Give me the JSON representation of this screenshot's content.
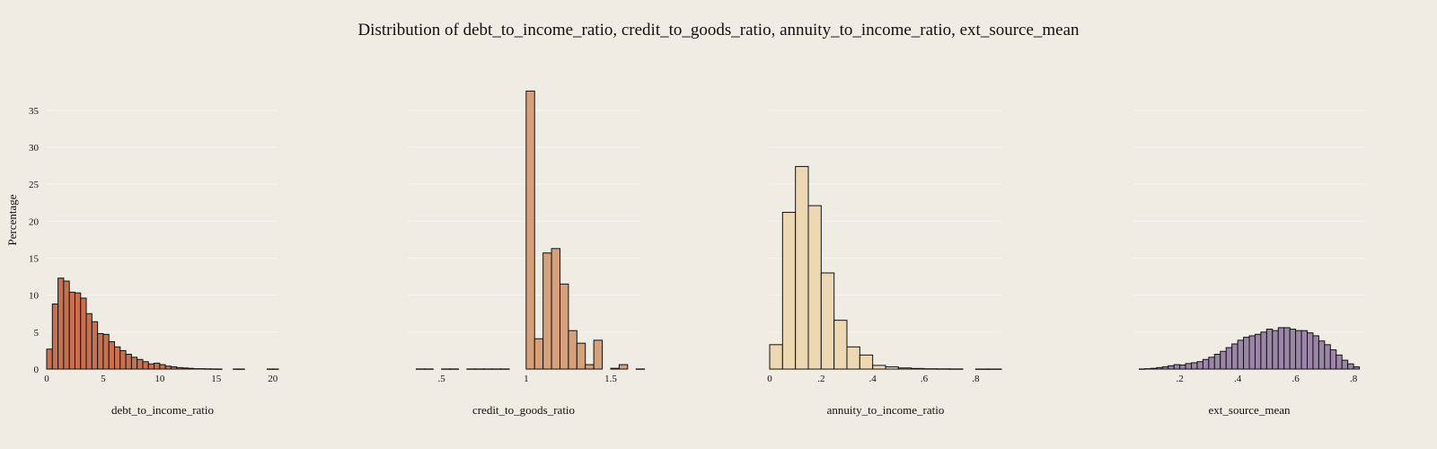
{
  "chart_data": {
    "type": "bar",
    "title": "Distribution of debt_to_income_ratio, credit_to_goods_ratio, annuity_to_income_ratio, ext_source_mean",
    "ylabel": "Percentage",
    "ylim": [
      0,
      38.5
    ],
    "yticks": [
      0,
      5,
      10,
      15,
      20,
      25,
      30,
      35
    ],
    "grid": true,
    "panels": [
      {
        "name": "debt_to_income_ratio",
        "xlabel": "debt_to_income_ratio",
        "color": "#c9704e",
        "xlim": [
          0,
          20.5
        ],
        "xticks": [
          0,
          5,
          10,
          15,
          20
        ],
        "bin_width": 0.5,
        "bins": [
          [
            0.0,
            2.7
          ],
          [
            0.5,
            8.8
          ],
          [
            1.0,
            12.3
          ],
          [
            1.5,
            11.9
          ],
          [
            2.0,
            10.4
          ],
          [
            2.5,
            10.3
          ],
          [
            3.0,
            9.6
          ],
          [
            3.5,
            7.5
          ],
          [
            4.0,
            6.4
          ],
          [
            4.5,
            4.8
          ],
          [
            5.0,
            4.7
          ],
          [
            5.5,
            3.7
          ],
          [
            6.0,
            3.0
          ],
          [
            6.5,
            2.5
          ],
          [
            7.0,
            2.0
          ],
          [
            7.5,
            1.6
          ],
          [
            8.0,
            1.3
          ],
          [
            8.5,
            1.0
          ],
          [
            9.0,
            0.7
          ],
          [
            9.5,
            0.8
          ],
          [
            10.0,
            0.6
          ],
          [
            10.5,
            0.4
          ],
          [
            11.0,
            0.3
          ],
          [
            11.5,
            0.2
          ],
          [
            12.0,
            0.15
          ],
          [
            12.5,
            0.1
          ],
          [
            13.0,
            0.05
          ],
          [
            13.5,
            0.05
          ],
          [
            14.0,
            0.03
          ],
          [
            14.5,
            0.02
          ],
          [
            15.0,
            0.01
          ],
          [
            16.5,
            0.01
          ],
          [
            17.0,
            0.01
          ],
          [
            19.5,
            0.01
          ],
          [
            20.0,
            0.01
          ]
        ]
      },
      {
        "name": "credit_to_goods_ratio",
        "xlabel": "credit_to_goods_ratio",
        "color": "#d6a07a",
        "xlim": [
          0.3,
          1.67
        ],
        "xticks": [
          0.5,
          1,
          1.5
        ],
        "bin_width": 0.05,
        "bins": [
          [
            0.35,
            0.02
          ],
          [
            0.4,
            0.02
          ],
          [
            0.5,
            0.02
          ],
          [
            0.55,
            0.02
          ],
          [
            0.65,
            0.02
          ],
          [
            0.7,
            0.02
          ],
          [
            0.75,
            0.02
          ],
          [
            0.8,
            0.02
          ],
          [
            0.85,
            0.02
          ],
          [
            1.0,
            37.6
          ],
          [
            1.05,
            4.1
          ],
          [
            1.1,
            15.7
          ],
          [
            1.15,
            16.3
          ],
          [
            1.2,
            11.5
          ],
          [
            1.25,
            5.2
          ],
          [
            1.3,
            3.5
          ],
          [
            1.35,
            0.6
          ],
          [
            1.4,
            3.9
          ],
          [
            1.5,
            0.1
          ],
          [
            1.55,
            0.6
          ],
          [
            1.65,
            0.02
          ]
        ]
      },
      {
        "name": "annuity_to_income_ratio",
        "xlabel": "annuity_to_income_ratio",
        "color": "#ecd9b4",
        "xlim": [
          0,
          0.9
        ],
        "xticks": [
          0,
          0.2,
          0.4,
          0.6,
          0.8
        ],
        "bin_width": 0.05,
        "bins": [
          [
            0.0,
            3.3
          ],
          [
            0.05,
            21.2
          ],
          [
            0.1,
            27.4
          ],
          [
            0.15,
            22.1
          ],
          [
            0.2,
            13.0
          ],
          [
            0.25,
            6.6
          ],
          [
            0.3,
            3.0
          ],
          [
            0.35,
            1.9
          ],
          [
            0.4,
            0.5
          ],
          [
            0.45,
            0.3
          ],
          [
            0.5,
            0.15
          ],
          [
            0.55,
            0.08
          ],
          [
            0.6,
            0.04
          ],
          [
            0.65,
            0.03
          ],
          [
            0.7,
            0.02
          ],
          [
            0.8,
            0.01
          ],
          [
            0.85,
            0.01
          ]
        ]
      },
      {
        "name": "ext_source_mean",
        "xlabel": "ext_source_mean",
        "color": "#9b86a8",
        "xlim": [
          0.04,
          0.84
        ],
        "xticks": [
          0.2,
          0.4,
          0.6,
          0.8
        ],
        "bin_width": 0.02,
        "bins": [
          [
            0.06,
            0.02
          ],
          [
            0.08,
            0.05
          ],
          [
            0.1,
            0.1
          ],
          [
            0.12,
            0.2
          ],
          [
            0.14,
            0.3
          ],
          [
            0.16,
            0.45
          ],
          [
            0.18,
            0.6
          ],
          [
            0.2,
            0.55
          ],
          [
            0.22,
            0.75
          ],
          [
            0.24,
            0.85
          ],
          [
            0.26,
            1.0
          ],
          [
            0.28,
            1.3
          ],
          [
            0.3,
            1.6
          ],
          [
            0.32,
            2.0
          ],
          [
            0.34,
            2.4
          ],
          [
            0.36,
            2.9
          ],
          [
            0.38,
            3.4
          ],
          [
            0.4,
            3.9
          ],
          [
            0.42,
            4.3
          ],
          [
            0.44,
            4.5
          ],
          [
            0.46,
            4.7
          ],
          [
            0.48,
            5.0
          ],
          [
            0.5,
            5.4
          ],
          [
            0.52,
            5.2
          ],
          [
            0.54,
            5.6
          ],
          [
            0.56,
            5.6
          ],
          [
            0.58,
            5.4
          ],
          [
            0.6,
            5.2
          ],
          [
            0.62,
            5.2
          ],
          [
            0.64,
            4.9
          ],
          [
            0.66,
            4.5
          ],
          [
            0.68,
            3.8
          ],
          [
            0.7,
            3.3
          ],
          [
            0.72,
            2.6
          ],
          [
            0.74,
            1.9
          ],
          [
            0.76,
            1.2
          ],
          [
            0.78,
            0.7
          ],
          [
            0.8,
            0.3
          ]
        ]
      }
    ]
  }
}
